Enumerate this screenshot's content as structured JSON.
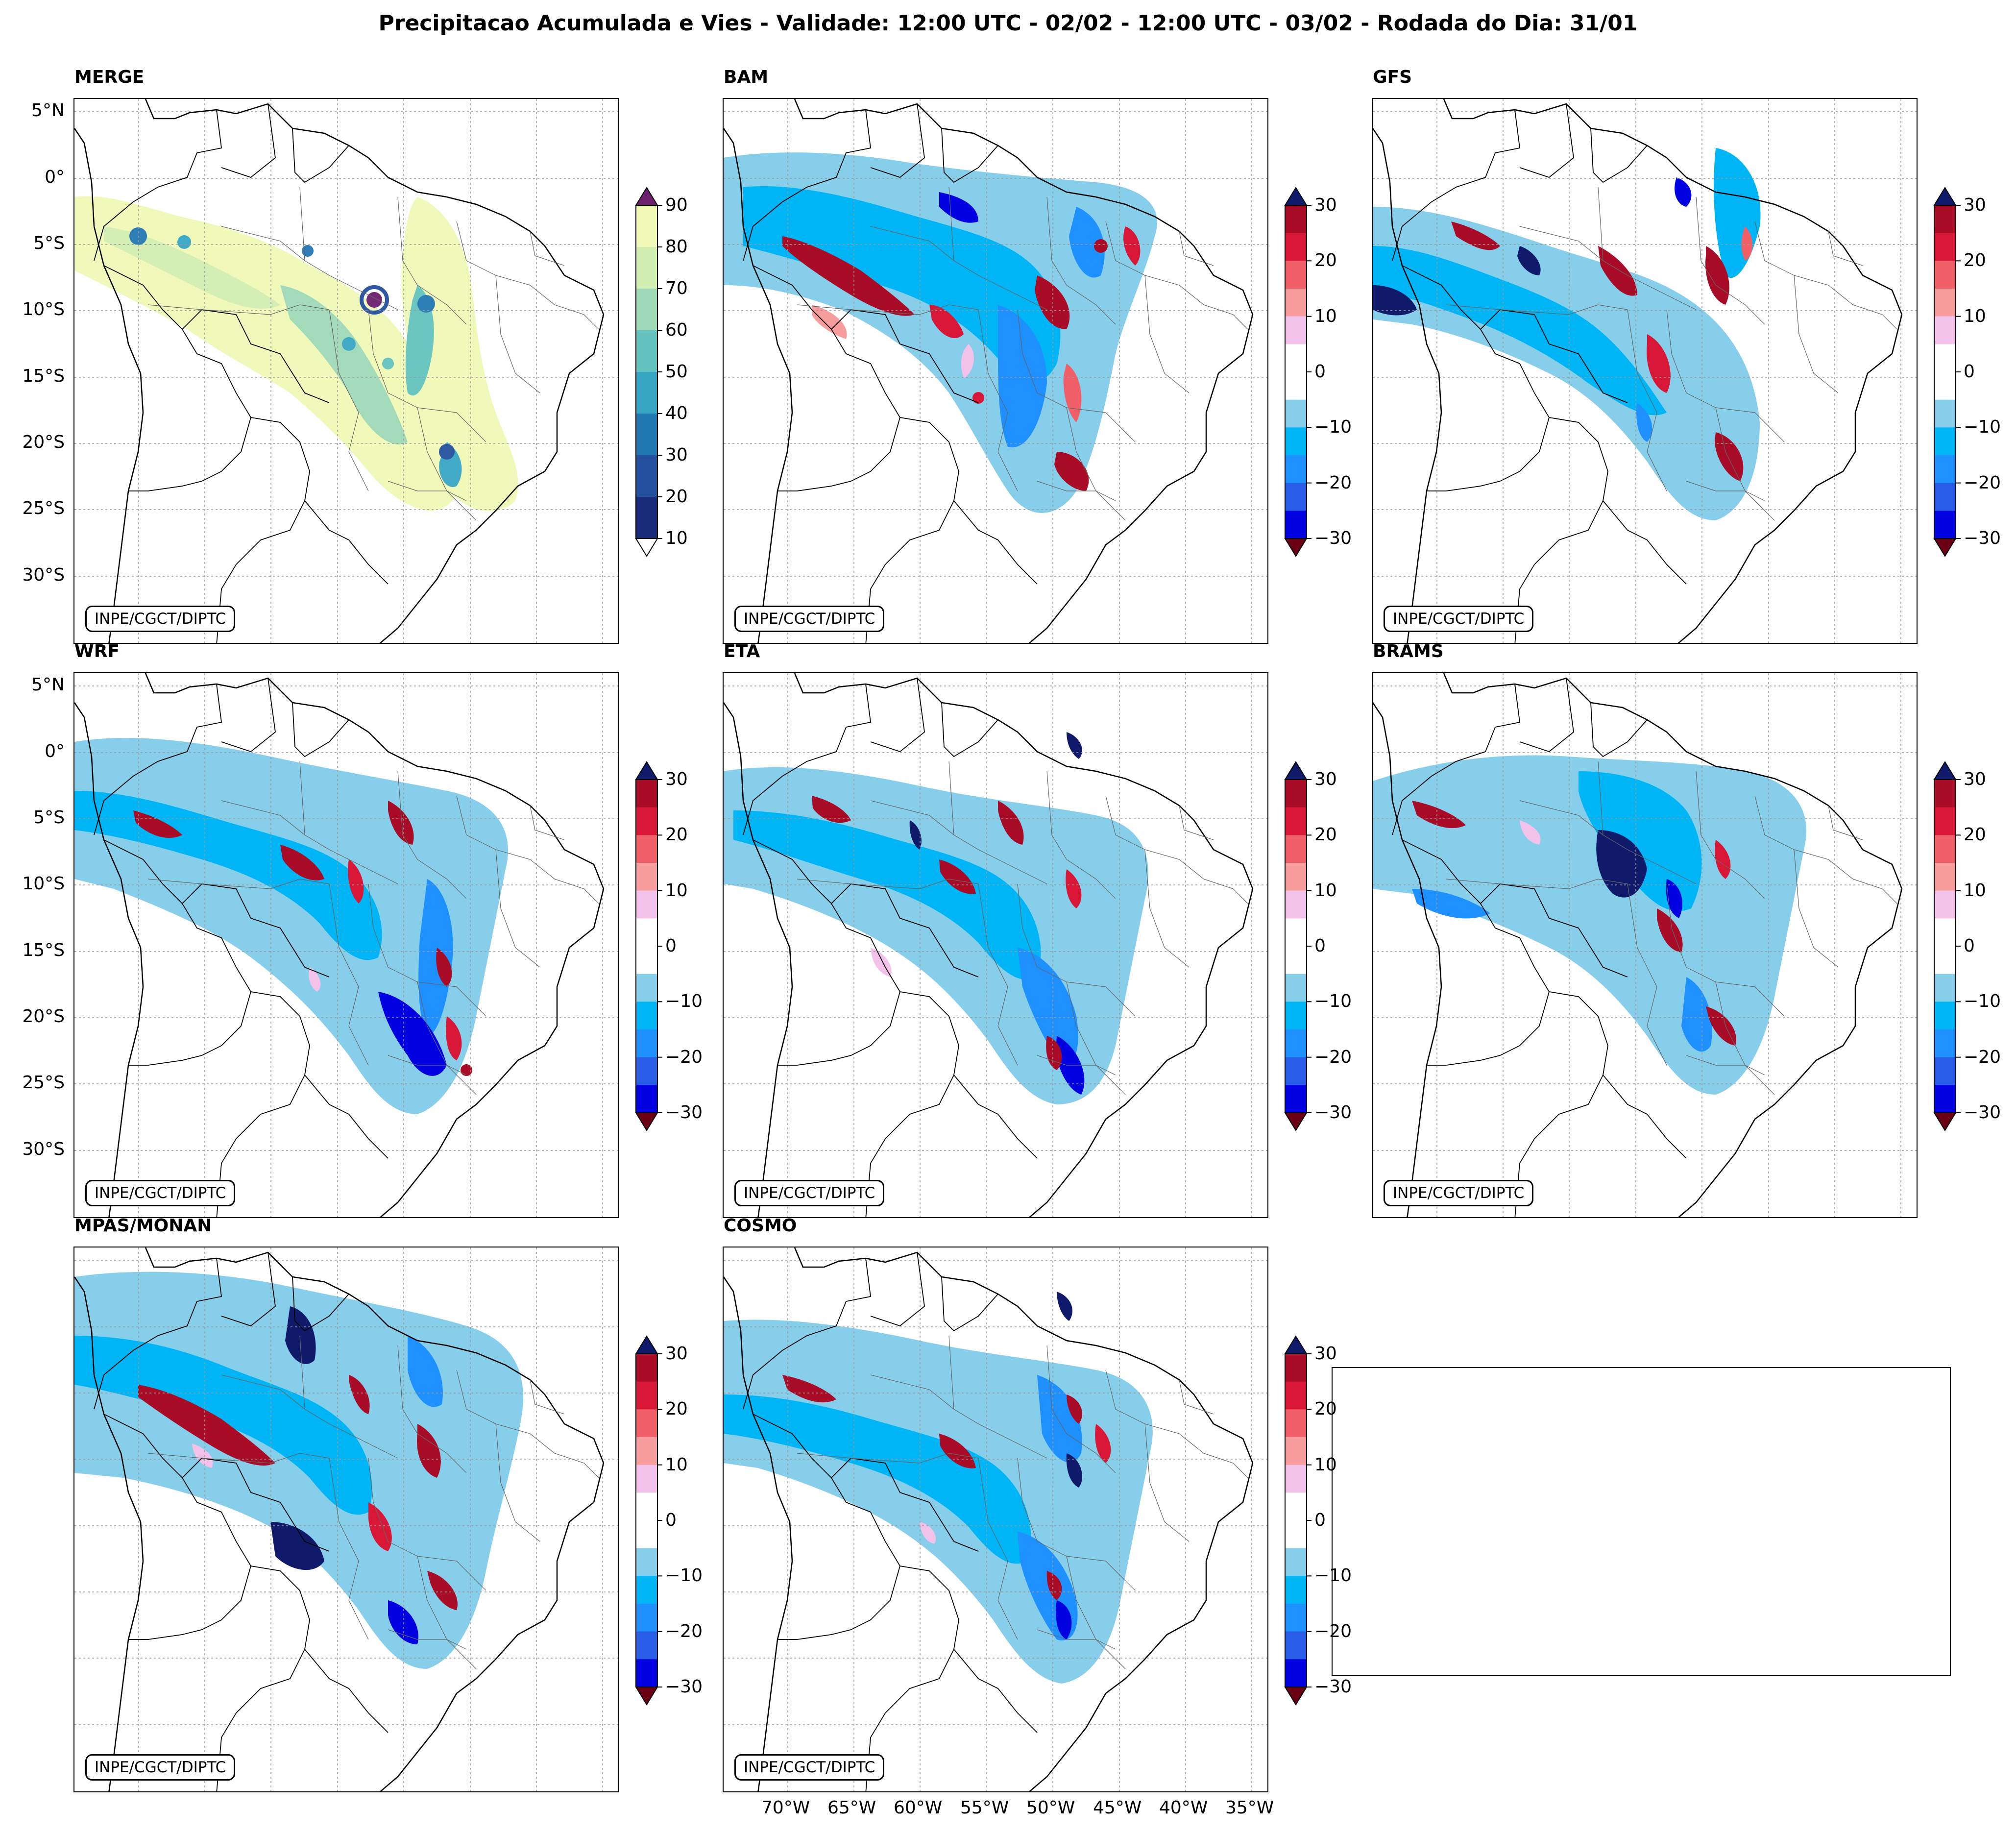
{
  "title": "Precipitacao Acumulada e Vies - Validade: 12:00 UTC - 02/02 - 12:00 UTC - 03/02 - Rodada do Dia: 31/01",
  "credit": "INPE/CGCT/DIPTC",
  "latitude_labels": [
    "5°N",
    "0°",
    "5°S",
    "10°S",
    "15°S",
    "20°S",
    "25°S",
    "30°S"
  ],
  "longitude_labels": [
    "70°W",
    "65°W",
    "60°W",
    "55°W",
    "50°W",
    "45°W",
    "40°W",
    "35°W"
  ],
  "panels": [
    {
      "name": "MERGE",
      "kind": "precip"
    },
    {
      "name": "BAM",
      "kind": "bias"
    },
    {
      "name": "GFS",
      "kind": "bias"
    },
    {
      "name": "WRF",
      "kind": "bias"
    },
    {
      "name": "ETA",
      "kind": "bias"
    },
    {
      "name": "BRAMS",
      "kind": "bias"
    },
    {
      "name": "MPAS/MONAN",
      "kind": "bias"
    },
    {
      "name": "COSMO",
      "kind": "bias"
    }
  ],
  "precip_colorbar": {
    "ticks": [
      "10",
      "20",
      "30",
      "40",
      "50",
      "60",
      "70",
      "80",
      "90"
    ],
    "colors": [
      "#f0f9b6",
      "#d3eeb3",
      "#9fd9b7",
      "#64c3bf",
      "#37a6c3",
      "#2178b2",
      "#24509f",
      "#192b7a"
    ],
    "over_color": "#6b1f6d",
    "under_color": "#ffffff"
  },
  "bias_colorbar": {
    "ticks": [
      "30",
      "20",
      "10",
      "0",
      "−10",
      "−20",
      "−30"
    ],
    "colors": [
      "#0000e0",
      "#2b5ee8",
      "#1e90ff",
      "#00b5f5",
      "#87ceeb",
      "#ffffff",
      "#ffffff",
      "#f2c2ea",
      "#f79d9d",
      "#f16069",
      "#d81736",
      "#a80c26"
    ],
    "over_color": "#0f1a6b",
    "under_color": "#6b0014"
  }
}
